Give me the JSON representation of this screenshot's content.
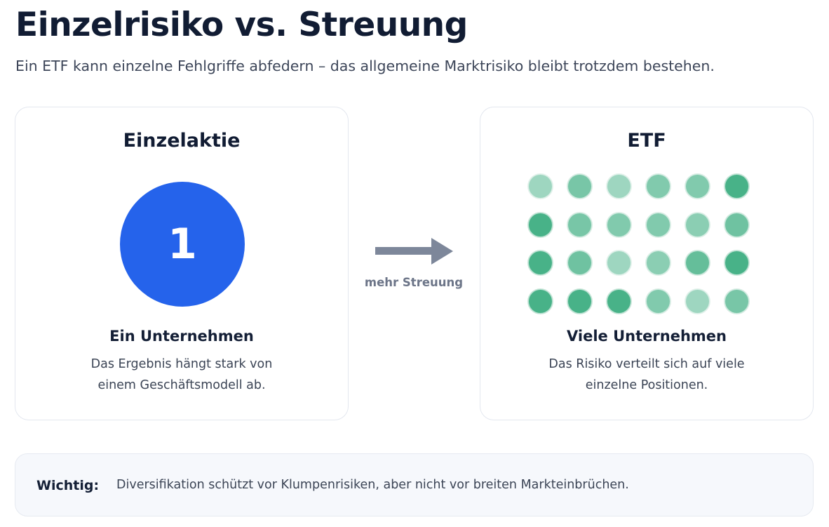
{
  "header": {
    "title": "Einzelrisiko vs. Streuung",
    "subtitle": "Ein ETF kann einzelne Fehlgriffe abfedern – das allgemeine Marktrisiko bleibt trotzdem bestehen."
  },
  "left_card": {
    "heading": "Einzelaktie",
    "count_label": "1",
    "label": "Ein Unternehmen",
    "description_line1": "Das Ergebnis hängt stark von",
    "description_line2": "einem Geschäftsmodell ab.",
    "circle_color": "#2563eb"
  },
  "arrow": {
    "label": "mehr Streuung",
    "color": "#7d879a"
  },
  "right_card": {
    "heading": "ETF",
    "label": "Viele Unternehmen",
    "description_line1": "Das Risiko verteilt sich auf viele",
    "description_line2": "einzelne Positionen.",
    "dot_color": "#3fae82",
    "dot_grid": {
      "rows": 4,
      "cols": 6,
      "opacities": [
        [
          0.5,
          0.7,
          0.5,
          0.65,
          0.65,
          0.95
        ],
        [
          0.95,
          0.7,
          0.65,
          0.65,
          0.6,
          0.75
        ],
        [
          0.95,
          0.75,
          0.5,
          0.6,
          0.8,
          0.95
        ],
        [
          0.95,
          0.95,
          0.95,
          0.65,
          0.5,
          0.7
        ]
      ]
    }
  },
  "note": {
    "label": "Wichtig:",
    "text": "Diversifikation schützt vor Klumpenrisiken, aber nicht vor breiten Markteinbrüchen."
  }
}
